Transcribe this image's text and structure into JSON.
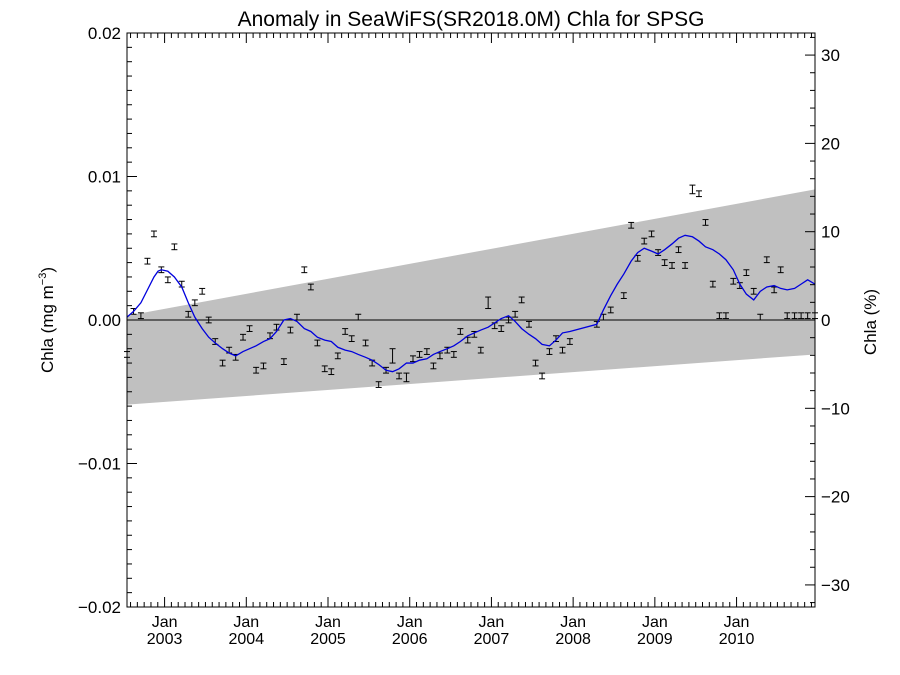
{
  "chart_data": {
    "type": "scatter",
    "title": "Anomaly in SeaWiFS(SR2018.0M) Chla for SPSG",
    "ylabel_left": "Chla (mg m",
    "ylabel_left_sup": "−3",
    "ylabel_left_close": ")",
    "ylabel_right": "Chla (%)",
    "xlim": [
      2002.54,
      2010.96
    ],
    "ylim": [
      -0.02,
      0.02
    ],
    "ylim_right": [
      -32.5,
      32.5
    ],
    "grid": false,
    "x_ticks": [
      {
        "top": "Jan",
        "bottom": "2003",
        "x": 2003.0
      },
      {
        "top": "Jan",
        "bottom": "2004",
        "x": 2004.0
      },
      {
        "top": "Jan",
        "bottom": "2005",
        "x": 2005.0
      },
      {
        "top": "Jan",
        "bottom": "2006",
        "x": 2006.0
      },
      {
        "top": "Jan",
        "bottom": "2007",
        "x": 2007.0
      },
      {
        "top": "Jan",
        "bottom": "2008",
        "x": 2008.0
      },
      {
        "top": "Jan",
        "bottom": "2009",
        "x": 2009.0
      },
      {
        "top": "Jan",
        "bottom": "2010",
        "x": 2010.0
      }
    ],
    "y_ticks_left": [
      {
        "label": "0.02",
        "value": 0.02
      },
      {
        "label": "0.01",
        "value": 0.01
      },
      {
        "label": "0.00",
        "value": 0.0
      },
      {
        "label": "−0.01",
        "value": -0.01
      },
      {
        "label": "−0.02",
        "value": -0.02
      }
    ],
    "y_ticks_right": [
      {
        "label": "30",
        "value": 30
      },
      {
        "label": "20",
        "value": 20
      },
      {
        "label": "10",
        "value": 10
      },
      {
        "label": "0",
        "value": 0
      },
      {
        "label": "−10",
        "value": -10
      },
      {
        "label": "−20",
        "value": -20
      },
      {
        "label": "−30",
        "value": -30
      }
    ],
    "trend_band": {
      "color": "#c0c0c0",
      "x": [
        2002.54,
        2010.96
      ],
      "upper": [
        0.0003,
        0.0091
      ],
      "lower": [
        -0.0059,
        -0.0024
      ]
    },
    "zero_line": 0.0,
    "colors": {
      "smooth": "#0000dd",
      "points": "#000000"
    },
    "points": {
      "x": [
        2002.54,
        2002.62,
        2002.71,
        2002.79,
        2002.87,
        2002.96,
        2003.04,
        2003.12,
        2003.21,
        2003.29,
        2003.37,
        2003.46,
        2003.54,
        2003.62,
        2003.71,
        2003.79,
        2003.87,
        2003.96,
        2004.04,
        2004.12,
        2004.21,
        2004.29,
        2004.37,
        2004.46,
        2004.54,
        2004.62,
        2004.71,
        2004.79,
        2004.87,
        2004.96,
        2005.04,
        2005.12,
        2005.21,
        2005.29,
        2005.37,
        2005.46,
        2005.54,
        2005.62,
        2005.71,
        2005.79,
        2005.87,
        2005.96,
        2006.04,
        2006.12,
        2006.21,
        2006.29,
        2006.37,
        2006.46,
        2006.54,
        2006.62,
        2006.71,
        2006.79,
        2006.87,
        2006.96,
        2007.04,
        2007.12,
        2007.21,
        2007.29,
        2007.37,
        2007.46,
        2007.54,
        2007.62,
        2007.71,
        2007.79,
        2007.87,
        2007.96,
        2008.29,
        2008.37,
        2008.46,
        2008.62,
        2008.71,
        2008.79,
        2008.87,
        2008.96,
        2009.04,
        2009.12,
        2009.21,
        2009.29,
        2009.37,
        2009.46,
        2009.54,
        2009.62,
        2009.71,
        2009.79,
        2009.87,
        2009.96,
        2010.04,
        2010.12,
        2010.21,
        2010.29,
        2010.37,
        2010.46,
        2010.54,
        2010.62,
        2010.71,
        2010.79,
        2010.87,
        2010.96
      ],
      "y": [
        -0.0024,
        0.0006,
        0.0003,
        0.0041,
        0.006,
        0.0035,
        0.0028,
        0.0051,
        0.0025,
        0.0004,
        0.0012,
        0.002,
        0.0,
        -0.0015,
        -0.003,
        -0.0021,
        -0.0026,
        -0.0012,
        -0.0006,
        -0.0035,
        -0.0032,
        -0.0011,
        -0.0005,
        -0.0029,
        -0.0007,
        0.0002,
        0.0035,
        0.0023,
        -0.0016,
        -0.0034,
        -0.0036,
        -0.0025,
        -0.0008,
        -0.0013,
        0.0002,
        -0.0016,
        -0.003,
        -0.0045,
        -0.0035,
        -0.0025,
        -0.0039,
        -0.004,
        -0.0027,
        -0.0024,
        -0.0022,
        -0.0032,
        -0.0025,
        -0.0021,
        -0.0024,
        -0.0008,
        -0.0014,
        -0.001,
        -0.0021,
        0.0012,
        -0.0004,
        -0.0006,
        0.0,
        0.0004,
        0.0014,
        -0.0003,
        -0.003,
        -0.0039,
        -0.0022,
        -0.0013,
        -0.0021,
        -0.0015,
        -0.0003,
        0.0002,
        0.0007,
        0.0017,
        0.0066,
        0.0043,
        0.0055,
        0.006,
        0.0047,
        0.004,
        0.0038,
        0.0049,
        0.0038,
        0.0091,
        0.0088,
        0.0068,
        0.0025,
        0.0003,
        0.0003,
        0.0027,
        0.0024,
        0.0033,
        0.002,
        0.0002,
        0.0042,
        0.0021,
        0.0035,
        0.0003,
        0.0003,
        0.0003,
        0.0003,
        0.0003
      ],
      "err": [
        0.0002,
        0.0002,
        0.0002,
        0.0002,
        0.0002,
        0.0002,
        0.0002,
        0.0002,
        0.0002,
        0.0002,
        0.0002,
        0.0002,
        0.0002,
        0.0002,
        0.0002,
        0.0002,
        0.0002,
        0.0002,
        0.0002,
        0.0002,
        0.0002,
        0.0002,
        0.0002,
        0.0002,
        0.0002,
        0.0002,
        0.0002,
        0.0002,
        0.0002,
        0.0002,
        0.0002,
        0.0002,
        0.0002,
        0.0002,
        0.0002,
        0.0002,
        0.0002,
        0.0002,
        0.0002,
        0.0005,
        0.0002,
        0.0003,
        0.0002,
        0.0002,
        0.0002,
        0.0002,
        0.0002,
        0.0002,
        0.0002,
        0.0002,
        0.0002,
        0.0002,
        0.0002,
        0.0004,
        0.0002,
        0.0002,
        0.0002,
        0.0002,
        0.0002,
        0.0002,
        0.0002,
        0.0002,
        0.0002,
        0.0002,
        0.0002,
        0.0002,
        0.0002,
        0.0002,
        0.0002,
        0.0002,
        0.0002,
        0.0002,
        0.0002,
        0.0002,
        0.0002,
        0.0002,
        0.0002,
        0.0002,
        0.0002,
        0.0003,
        0.0002,
        0.0002,
        0.0002,
        0.0002,
        0.0002,
        0.0002,
        0.0002,
        0.0002,
        0.0002,
        0.0002,
        0.0002,
        0.0002,
        0.0002,
        0.0002,
        0.0002,
        0.0002,
        0.0002,
        0.0002
      ]
    },
    "smooth": {
      "x": [
        2002.54,
        2002.62,
        2002.71,
        2002.79,
        2002.87,
        2002.92,
        2002.96,
        2003.04,
        2003.12,
        2003.21,
        2003.29,
        2003.37,
        2003.46,
        2003.54,
        2003.62,
        2003.71,
        2003.79,
        2003.87,
        2003.96,
        2004.04,
        2004.12,
        2004.21,
        2004.29,
        2004.37,
        2004.46,
        2004.54,
        2004.62,
        2004.71,
        2004.79,
        2004.87,
        2004.96,
        2005.04,
        2005.12,
        2005.21,
        2005.29,
        2005.37,
        2005.46,
        2005.54,
        2005.62,
        2005.71,
        2005.79,
        2005.87,
        2005.96,
        2006.04,
        2006.12,
        2006.21,
        2006.29,
        2006.37,
        2006.46,
        2006.54,
        2006.62,
        2006.71,
        2006.79,
        2006.87,
        2006.96,
        2007.04,
        2007.12,
        2007.21,
        2007.29,
        2007.37,
        2007.46,
        2007.54,
        2007.62,
        2007.71,
        2007.79,
        2007.87,
        2007.96,
        2008.29,
        2008.37,
        2008.46,
        2008.54,
        2008.62,
        2008.71,
        2008.79,
        2008.87,
        2008.96,
        2009.04,
        2009.12,
        2009.21,
        2009.29,
        2009.37,
        2009.46,
        2009.54,
        2009.62,
        2009.71,
        2009.79,
        2009.87,
        2009.96,
        2010.04,
        2010.12,
        2010.21,
        2010.29,
        2010.37,
        2010.46,
        2010.54,
        2010.62,
        2010.71,
        2010.79,
        2010.87,
        2010.96
      ],
      "y": [
        0.0002,
        0.0006,
        0.0012,
        0.0021,
        0.003,
        0.0034,
        0.0035,
        0.0034,
        0.003,
        0.0023,
        0.0012,
        0.0002,
        -0.0006,
        -0.0012,
        -0.0016,
        -0.002,
        -0.0023,
        -0.0025,
        -0.0022,
        -0.002,
        -0.0018,
        -0.0015,
        -0.0013,
        -0.0008,
        0.0,
        0.0001,
        -0.0001,
        -0.0006,
        -0.0008,
        -0.0012,
        -0.0014,
        -0.0015,
        -0.0019,
        -0.0021,
        -0.0022,
        -0.0024,
        -0.0026,
        -0.0028,
        -0.0031,
        -0.0035,
        -0.0036,
        -0.0034,
        -0.003,
        -0.003,
        -0.0028,
        -0.0027,
        -0.0024,
        -0.0022,
        -0.002,
        -0.0018,
        -0.0015,
        -0.0011,
        -0.0009,
        -0.0007,
        -0.0005,
        -0.0002,
        0.0001,
        0.0003,
        -0.0001,
        -0.0006,
        -0.001,
        -0.0013,
        -0.0017,
        -0.0018,
        -0.0014,
        -0.0009,
        -0.0008,
        -0.0003,
        0.0007,
        0.0017,
        0.0025,
        0.0032,
        0.0041,
        0.0047,
        0.005,
        0.0048,
        0.0046,
        0.0049,
        0.0053,
        0.0057,
        0.0059,
        0.0058,
        0.0055,
        0.0051,
        0.0049,
        0.0046,
        0.0042,
        0.0035,
        0.0025,
        0.0018,
        0.0014,
        0.002,
        0.0023,
        0.0024,
        0.0022,
        0.0021,
        0.0022,
        0.0025,
        0.0028,
        0.0025
      ]
    }
  }
}
